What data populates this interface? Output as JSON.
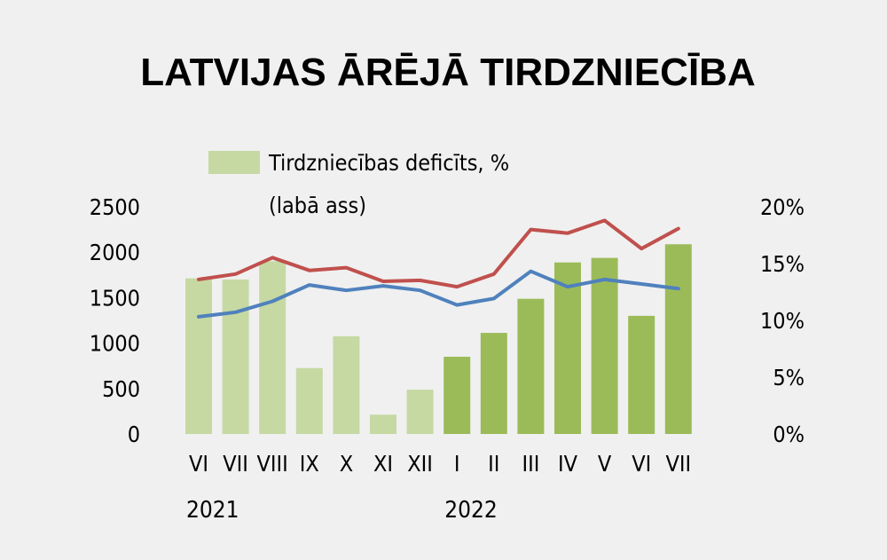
{
  "chart_data": {
    "type": "bar",
    "title": "LATVIJAS ĀRĒJĀ TIRDZNIECĪBA",
    "categories": [
      "VI",
      "VII",
      "VIII",
      "IX",
      "X",
      "XI",
      "XII",
      "I",
      "II",
      "III",
      "IV",
      "V",
      "VI",
      "VII"
    ],
    "year_labels": [
      {
        "label": "2021",
        "category_index": 0
      },
      {
        "label": "2022",
        "category_index": 7
      }
    ],
    "left_axis": {
      "ticks": [
        "0",
        "500",
        "1000",
        "1500",
        "2000",
        "2500"
      ],
      "ylim": [
        0,
        2500
      ]
    },
    "right_axis": {
      "ticks": [
        "0%",
        "5%",
        "10%",
        "15%",
        "20%"
      ],
      "ylim": [
        0,
        20
      ]
    },
    "legend": [
      {
        "text": "Tirdzniecības deficīts, %",
        "color": "#c6d9a3"
      },
      {
        "text": "(labā ass)",
        "color": ""
      }
    ],
    "series": [
      {
        "type": "bar",
        "axis": "right",
        "values": [
          13.7,
          13.6,
          15.2,
          5.8,
          8.6,
          1.7,
          3.9,
          6.8,
          8.9,
          11.9,
          15.1,
          15.5,
          10.4,
          16.7
        ],
        "colors": [
          "#c6d9a3",
          "#c6d9a3",
          "#c6d9a3",
          "#c6d9a3",
          "#c6d9a3",
          "#c6d9a3",
          "#c6d9a3",
          "#9bbb59",
          "#9bbb59",
          "#9bbb59",
          "#9bbb59",
          "#9bbb59",
          "#9bbb59",
          "#9bbb59"
        ]
      },
      {
        "type": "line",
        "axis": "left",
        "color": "#c0504d",
        "values": [
          1700,
          1760,
          1940,
          1800,
          1830,
          1680,
          1690,
          1620,
          1760,
          2250,
          2210,
          2350,
          2040,
          2260
        ]
      },
      {
        "type": "line",
        "axis": "left",
        "color": "#4f81bd",
        "values": [
          1290,
          1340,
          1460,
          1640,
          1580,
          1630,
          1580,
          1420,
          1490,
          1790,
          1620,
          1700,
          1650,
          1600
        ]
      }
    ]
  }
}
